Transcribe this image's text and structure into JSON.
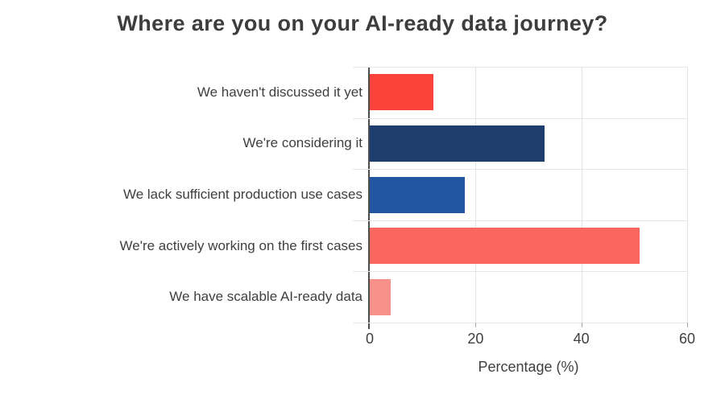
{
  "chart_data": {
    "type": "bar",
    "orientation": "horizontal",
    "title": "Where are you on your AI-ready data journey?",
    "categories": [
      "We haven't discussed it yet",
      "We're considering it",
      "We lack sufficient production use cases",
      "We're actively working on the first cases",
      "We have scalable AI-ready data"
    ],
    "values": [
      12,
      33,
      18,
      51,
      4
    ],
    "bar_colors": [
      "#f8423a",
      "#1c3d6e",
      "#2356a2",
      "#fa675f",
      "#f9918b"
    ],
    "xlabel": "Percentage (%)",
    "xlim": [
      0,
      60
    ],
    "xticks": [
      0,
      20,
      40,
      60
    ],
    "grid": true,
    "legend": false
  },
  "colors": {
    "background": "#ffffff",
    "title_text": "#3d3d3d",
    "label_text": "#3f3f3f",
    "gridline": "#e7e7e7",
    "axis_line": "#4d4d4d"
  }
}
